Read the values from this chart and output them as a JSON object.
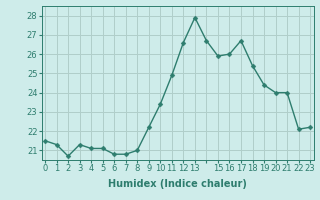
{
  "x": [
    0,
    1,
    2,
    3,
    4,
    5,
    6,
    7,
    8,
    9,
    10,
    11,
    12,
    13,
    14,
    15,
    16,
    17,
    18,
    19,
    20,
    21,
    22,
    23
  ],
  "y": [
    21.5,
    21.3,
    20.7,
    21.3,
    21.1,
    21.1,
    20.8,
    20.8,
    21.0,
    22.2,
    23.4,
    24.9,
    26.6,
    27.9,
    26.7,
    25.9,
    26.0,
    26.7,
    25.4,
    24.4,
    24.0,
    24.0,
    22.1,
    22.2
  ],
  "line_color": "#2e7d6e",
  "bg_color": "#ceecea",
  "grid_color": "#b0ceca",
  "xlabel": "Humidex (Indice chaleur)",
  "ylim": [
    20.5,
    28.5
  ],
  "yticks": [
    21,
    22,
    23,
    24,
    25,
    26,
    27,
    28
  ],
  "xticks": [
    0,
    1,
    2,
    3,
    4,
    5,
    6,
    7,
    8,
    9,
    10,
    11,
    12,
    13,
    15,
    16,
    17,
    18,
    19,
    20,
    21,
    22,
    23
  ],
  "xlim": [
    -0.3,
    23.3
  ],
  "marker_size": 2.5,
  "line_width": 1.0,
  "xlabel_fontsize": 7,
  "tick_fontsize": 6
}
